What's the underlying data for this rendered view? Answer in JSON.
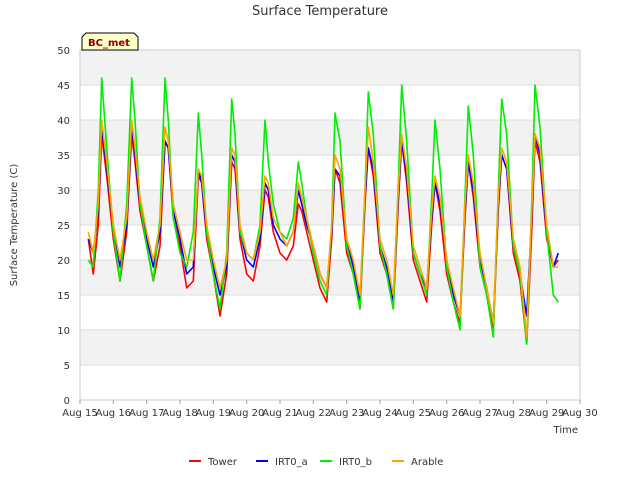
{
  "chart_data": {
    "type": "line",
    "title": "Surface Temperature",
    "xlabel": "Time",
    "ylabel": "Surface Temperature (C)",
    "badge": "BC_met",
    "ylim": [
      0,
      50
    ],
    "yticks": [
      0,
      5,
      10,
      15,
      20,
      25,
      30,
      35,
      40,
      45,
      50
    ],
    "xlim": [
      15,
      30
    ],
    "xticks": [
      {
        "value": 15,
        "label": "Aug 15"
      },
      {
        "value": 16,
        "label": "Aug 16"
      },
      {
        "value": 17,
        "label": "Aug 17"
      },
      {
        "value": 18,
        "label": "Aug 18"
      },
      {
        "value": 19,
        "label": "Aug 19"
      },
      {
        "value": 20,
        "label": "Aug 20"
      },
      {
        "value": 21,
        "label": "Aug 21"
      },
      {
        "value": 22,
        "label": "Aug 22"
      },
      {
        "value": 23,
        "label": "Aug 23"
      },
      {
        "value": 24,
        "label": "Aug 24"
      },
      {
        "value": 25,
        "label": "Aug 25"
      },
      {
        "value": 26,
        "label": "Aug 26"
      },
      {
        "value": 27,
        "label": "Aug 27"
      },
      {
        "value": 28,
        "label": "Aug 28"
      },
      {
        "value": 29,
        "label": "Aug 29"
      },
      {
        "value": 30,
        "label": "Aug 30"
      }
    ],
    "grid": true,
    "legend_position": "bottom",
    "series": [
      {
        "name": "Tower",
        "color": "#ff0000",
        "x": [
          15.25,
          15.4,
          15.55,
          15.65,
          15.8,
          16.0,
          16.2,
          16.4,
          16.55,
          16.65,
          16.8,
          17.0,
          17.2,
          17.4,
          17.55,
          17.65,
          17.8,
          18.0,
          18.2,
          18.4,
          18.55,
          18.65,
          18.8,
          19.0,
          19.2,
          19.4,
          19.55,
          19.65,
          19.8,
          20.0,
          20.2,
          20.4,
          20.55,
          20.65,
          20.8,
          21.0,
          21.2,
          21.4,
          21.55,
          21.65,
          21.8,
          22.0,
          22.2,
          22.4,
          22.55,
          22.65,
          22.8,
          23.0,
          23.2,
          23.4,
          23.55,
          23.65,
          23.8,
          24.0,
          24.2,
          24.4,
          24.55,
          24.65,
          24.8,
          25.0,
          25.2,
          25.4,
          25.55,
          25.65,
          25.8,
          26.0,
          26.2,
          26.4,
          26.55,
          26.65,
          26.8,
          27.0,
          27.2,
          27.4,
          27.55,
          27.65,
          27.8,
          28.0,
          28.2,
          28.4,
          28.55,
          28.65,
          28.8,
          29.0,
          29.2,
          29.35
        ],
        "y": [
          23,
          18,
          25,
          38,
          32,
          23,
          17,
          24,
          38,
          34,
          27,
          22,
          17,
          22,
          37,
          36,
          26,
          22,
          16,
          17,
          32,
          31,
          23,
          18,
          12,
          18,
          34,
          33,
          23,
          18,
          17,
          22,
          30,
          29,
          24,
          21,
          20,
          22,
          28,
          27,
          24,
          20,
          16,
          14,
          23,
          33,
          31,
          21,
          18,
          13,
          28,
          36,
          32,
          21,
          18,
          13,
          28,
          37,
          31,
          20,
          17,
          14,
          25,
          31,
          27,
          18,
          14,
          11,
          26,
          34,
          29,
          19,
          15,
          10,
          27,
          35,
          33,
          21,
          17,
          8,
          24,
          37,
          34,
          23,
          19,
          20
        ]
      },
      {
        "name": "IRT0_a",
        "color": "#0000ff",
        "x": [
          15.25,
          15.4,
          15.55,
          15.65,
          15.8,
          16.0,
          16.2,
          16.4,
          16.55,
          16.65,
          16.8,
          17.0,
          17.2,
          17.4,
          17.55,
          17.65,
          17.8,
          18.0,
          18.2,
          18.4,
          18.55,
          18.65,
          18.8,
          19.0,
          19.2,
          19.4,
          19.55,
          19.65,
          19.8,
          20.0,
          20.2,
          20.4,
          20.55,
          20.65,
          20.8,
          21.0,
          21.2,
          21.4,
          21.55,
          21.65,
          21.8,
          22.0,
          22.2,
          22.4,
          22.55,
          22.65,
          22.8,
          23.0,
          23.2,
          23.4,
          23.55,
          23.65,
          23.8,
          24.0,
          24.2,
          24.4,
          24.55,
          24.65,
          24.8,
          25.0,
          25.2,
          25.4,
          25.55,
          25.65,
          25.8,
          26.0,
          26.2,
          26.4,
          26.55,
          26.65,
          26.8,
          27.0,
          27.2,
          27.4,
          27.55,
          27.65,
          27.8,
          28.0,
          28.2,
          28.4,
          28.55,
          28.65,
          28.8,
          29.0,
          29.2,
          29.35
        ],
        "y": [
          23,
          21,
          27,
          39,
          33,
          25,
          19,
          25,
          39,
          35,
          28,
          23,
          19,
          24,
          37,
          36,
          27,
          23,
          18,
          19,
          33,
          31,
          24,
          19,
          15,
          19,
          35,
          34,
          24,
          20,
          19,
          23,
          31,
          30,
          25,
          23,
          22,
          24,
          30,
          28,
          25,
          22,
          18,
          16,
          24,
          33,
          32,
          23,
          19,
          14,
          29,
          36,
          33,
          22,
          19,
          14,
          29,
          37,
          32,
          21,
          18,
          16,
          26,
          31,
          28,
          20,
          15,
          12,
          27,
          34,
          30,
          20,
          16,
          11,
          28,
          35,
          33,
          22,
          18,
          12,
          26,
          38,
          35,
          24,
          19,
          21
        ]
      },
      {
        "name": "IRT0_b",
        "color": "#00ee00",
        "x": [
          15.25,
          15.4,
          15.55,
          15.65,
          15.8,
          16.0,
          16.2,
          16.4,
          16.55,
          16.65,
          16.8,
          17.0,
          17.2,
          17.4,
          17.55,
          17.65,
          17.8,
          18.0,
          18.2,
          18.4,
          18.55,
          18.65,
          18.8,
          19.0,
          19.2,
          19.4,
          19.55,
          19.65,
          19.8,
          20.0,
          20.2,
          20.4,
          20.55,
          20.65,
          20.8,
          21.0,
          21.2,
          21.4,
          21.55,
          21.65,
          21.8,
          22.0,
          22.2,
          22.4,
          22.55,
          22.65,
          22.8,
          23.0,
          23.2,
          23.4,
          23.55,
          23.65,
          23.8,
          24.0,
          24.2,
          24.4,
          24.55,
          24.65,
          24.8,
          25.0,
          25.2,
          25.4,
          25.55,
          25.65,
          25.8,
          26.0,
          26.2,
          26.4,
          26.55,
          26.65,
          26.8,
          27.0,
          27.2,
          27.4,
          27.55,
          27.65,
          27.8,
          28.0,
          28.2,
          28.4,
          28.55,
          28.65,
          28.8,
          29.0,
          29.2,
          29.35
        ],
        "y": [
          20,
          19,
          30,
          46,
          36,
          24,
          17,
          28,
          46,
          40,
          28,
          22,
          17,
          26,
          46,
          40,
          26,
          21,
          19,
          24,
          41,
          35,
          24,
          18,
          13,
          21,
          43,
          38,
          24,
          21,
          20,
          25,
          40,
          34,
          28,
          24,
          23,
          26,
          34,
          31,
          26,
          21,
          17,
          15,
          25,
          41,
          37,
          22,
          18,
          13,
          30,
          44,
          38,
          22,
          18,
          13,
          31,
          45,
          37,
          21,
          18,
          15,
          29,
          40,
          33,
          19,
          14,
          10,
          29,
          42,
          35,
          19,
          15,
          9,
          30,
          43,
          38,
          22,
          18,
          8,
          28,
          45,
          39,
          24,
          15,
          14
        ]
      },
      {
        "name": "Arable",
        "color": "#ffa500",
        "x": [
          15.25,
          15.4,
          15.55,
          15.65,
          15.8,
          16.0,
          16.2,
          16.4,
          16.55,
          16.65,
          16.8,
          17.0,
          17.2,
          17.4,
          17.55,
          17.65,
          17.8,
          18.0,
          18.2,
          18.4,
          18.55,
          18.65,
          18.8,
          19.0,
          19.2,
          19.4,
          19.55,
          19.65,
          19.8,
          20.0,
          20.2,
          20.4,
          20.55,
          20.65,
          20.8,
          21.0,
          21.2,
          21.4,
          21.55,
          21.65,
          21.8,
          22.0,
          22.2,
          22.4,
          22.55,
          22.65,
          22.8,
          23.0,
          23.2,
          23.4,
          23.55,
          23.65,
          23.8,
          24.0,
          24.2,
          24.4,
          24.55,
          24.65,
          24.8,
          25.0,
          25.2,
          25.4,
          25.55,
          25.65,
          25.8,
          26.0,
          26.2,
          26.4,
          26.55,
          26.65,
          26.8,
          27.0,
          27.2,
          27.4,
          27.55,
          27.65,
          27.8,
          28.0,
          28.2,
          28.4,
          28.55,
          28.65,
          28.8,
          29.0,
          29.2,
          29.35
        ],
        "y": [
          24,
          21,
          28,
          40,
          34,
          25,
          20,
          26,
          40,
          36,
          29,
          24,
          20,
          25,
          39,
          37,
          28,
          24,
          20,
          20,
          33,
          32,
          25,
          20,
          16,
          20,
          36,
          35,
          25,
          21,
          20,
          24,
          32,
          31,
          26,
          24,
          22,
          24,
          31,
          29,
          26,
          22,
          18,
          16,
          25,
          35,
          33,
          23,
          20,
          15,
          30,
          39,
          34,
          23,
          20,
          15,
          30,
          38,
          33,
          22,
          19,
          16,
          27,
          32,
          29,
          20,
          16,
          12,
          28,
          35,
          31,
          21,
          16,
          11,
          29,
          36,
          34,
          23,
          19,
          9,
          27,
          38,
          36,
          25,
          19,
          19
        ]
      }
    ]
  }
}
